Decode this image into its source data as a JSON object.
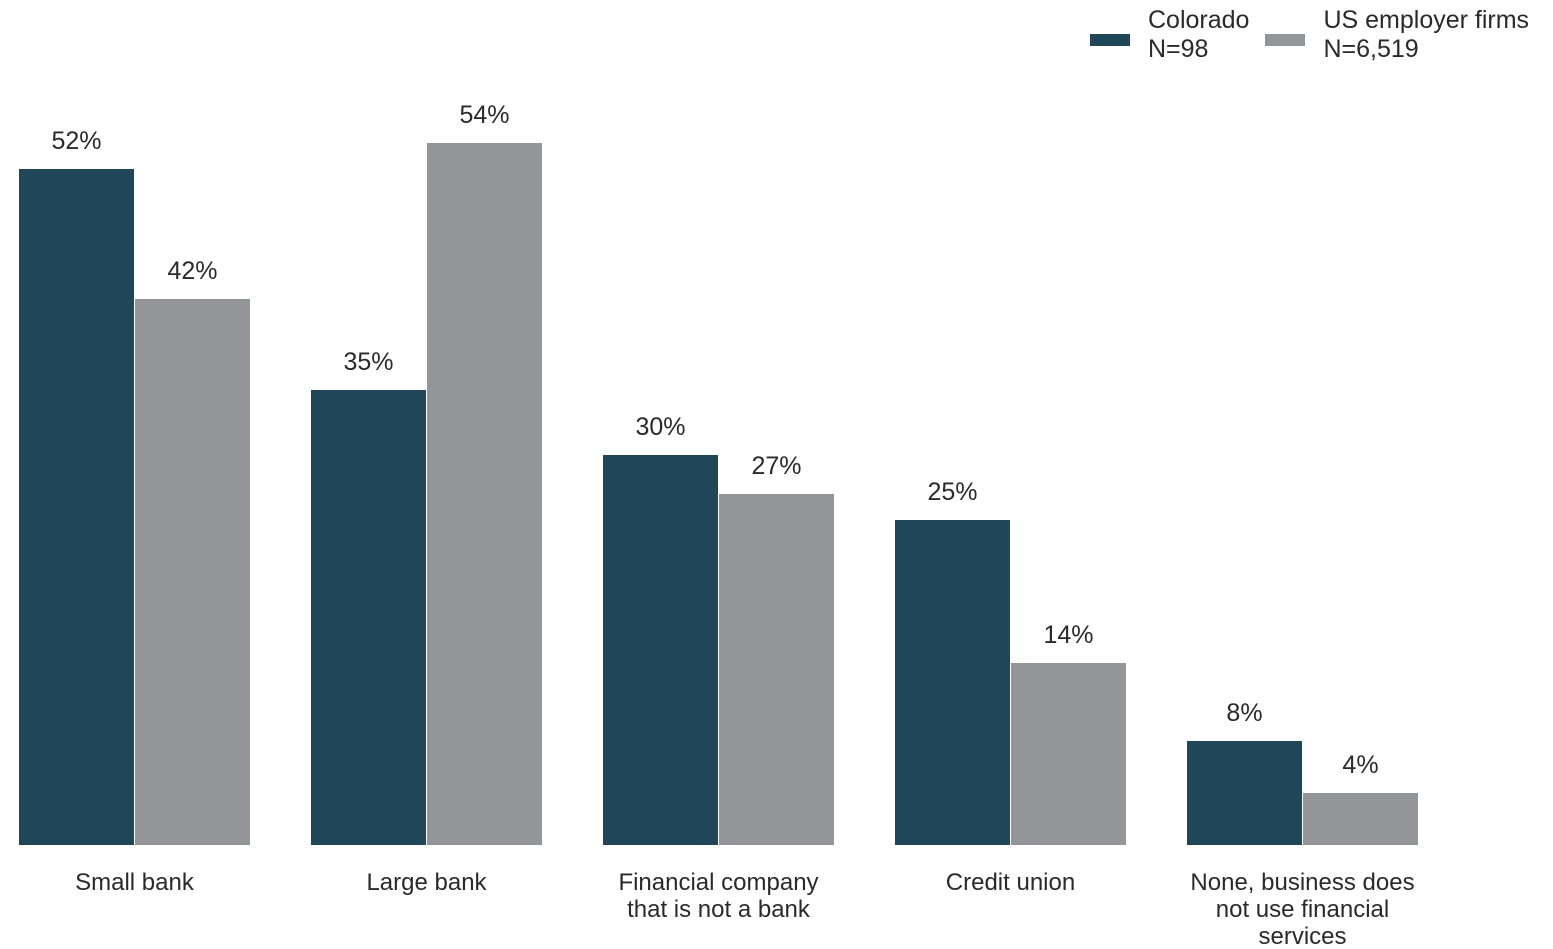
{
  "colors": {
    "colorado": "#1f4659",
    "us": "#939598"
  },
  "chart_data": {
    "type": "bar",
    "title": "",
    "xlabel": "",
    "ylabel": "",
    "ylim": [
      0,
      54
    ],
    "grid": false,
    "legend_position": "top-right",
    "categories": [
      [
        "Small bank"
      ],
      [
        "Large bank"
      ],
      [
        "Financial company",
        "that is not a bank"
      ],
      [
        "Credit union"
      ],
      [
        "None, business does",
        "not use financial",
        "services"
      ]
    ],
    "series": [
      {
        "name": "Colorado",
        "sublabel": "N=98",
        "color": "#1f4659",
        "values": [
          52,
          35,
          30,
          25,
          8
        ],
        "labels": [
          "52%",
          "35%",
          "30%",
          "25%",
          "8%"
        ]
      },
      {
        "name": "US employer firms",
        "sublabel": "N=6,519",
        "color": "#939598",
        "values": [
          42,
          54,
          27,
          14,
          4
        ],
        "labels": [
          "42%",
          "54%",
          "27%",
          "14%",
          "4%"
        ]
      }
    ]
  }
}
